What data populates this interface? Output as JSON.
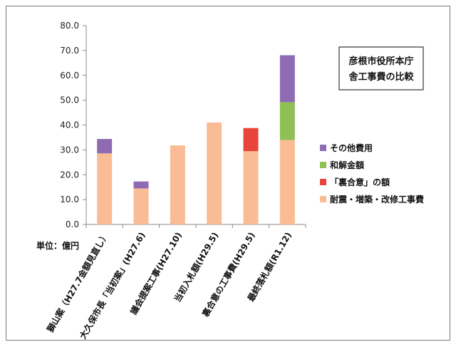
{
  "chart_data": {
    "type": "bar",
    "stacked": true,
    "title": "彦根市役所本庁舎工事費の比較",
    "title_lines": [
      "彦根市役所本庁",
      "舎工事費の比較"
    ],
    "ylabel": "単位：億円",
    "ylim": [
      0,
      80
    ],
    "yticks": [
      "0.0",
      "10.0",
      "20.0",
      "30.0",
      "40.0",
      "50.0",
      "60.0",
      "70.0",
      "80.0"
    ],
    "grid": false,
    "categories": [
      "獅山案（H27.7金額見直し）",
      "大久保市長「当初案」(H27.6)",
      "議会提案工事(H27.10)",
      "当初入札額(H29.5)",
      "裏合意の工事費(H29.5)",
      "最終落札額(R1.12)"
    ],
    "series": [
      {
        "name": "耐震・増築・改修工事費",
        "color": "#f9bc94",
        "values": [
          28.6,
          14.5,
          31.8,
          41.0,
          29.5,
          34.0
        ]
      },
      {
        "name": "「裏合意」の額",
        "color": "#e8443a",
        "values": [
          0,
          0,
          0,
          0,
          9.3,
          0
        ]
      },
      {
        "name": "和解金額",
        "color": "#8fbf55",
        "values": [
          0,
          0,
          0,
          0,
          0,
          15.2
        ]
      },
      {
        "name": "その他費用",
        "color": "#8f6bb3",
        "values": [
          5.8,
          2.8,
          0,
          0,
          0,
          18.9
        ]
      }
    ],
    "legend_order": [
      "その他費用",
      "和解金額",
      "「裏合意」の額",
      "耐震・増築・改修工事費"
    ],
    "legend_position": "right"
  }
}
